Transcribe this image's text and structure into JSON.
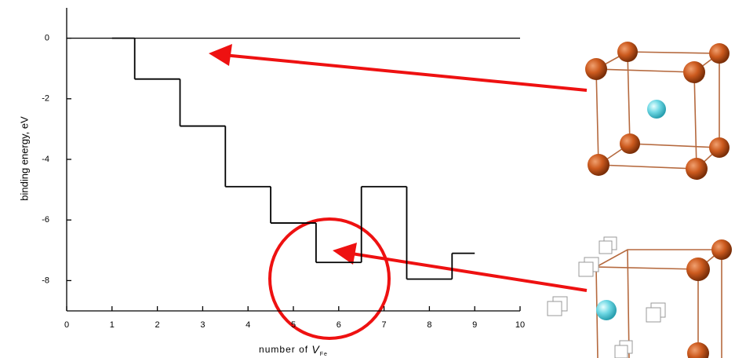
{
  "chart_data": {
    "type": "step",
    "ylabel": "binding energy, eV",
    "xlabel": "number of",
    "xlabel_var": "V",
    "xlabel_sub": "Fe",
    "x": [
      1,
      2,
      3,
      4,
      5,
      6,
      7,
      8,
      9
    ],
    "values": [
      0,
      -1.35,
      -2.9,
      -4.9,
      -6.1,
      -7.4,
      -4.9,
      -7.95,
      -7.1
    ],
    "color": "#000000",
    "xlim": [
      0,
      10
    ],
    "xticks": [
      0,
      1,
      2,
      3,
      4,
      5,
      6,
      7,
      8,
      9,
      10
    ],
    "ylim": [
      -9,
      1
    ],
    "yticks": [
      0,
      -2,
      -4,
      -6,
      -8
    ]
  }
}
